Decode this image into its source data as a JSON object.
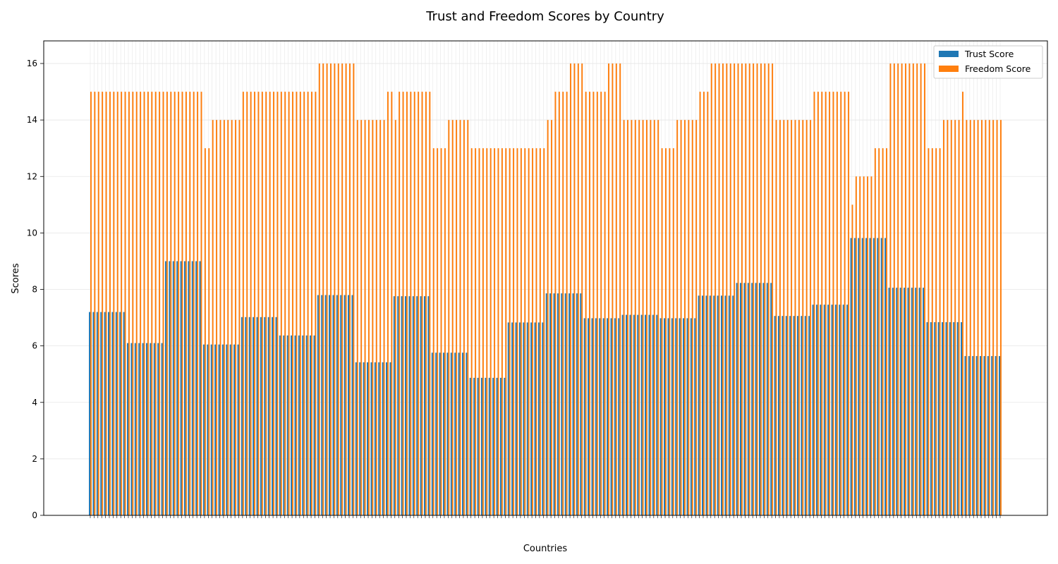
{
  "chart_data": {
    "type": "bar",
    "title": "Trust and Freedom Scores by Country",
    "xlabel": "Countries",
    "ylabel": "Scores",
    "ylim": [
      0,
      16.8
    ],
    "yticks": [
      0,
      2,
      4,
      6,
      8,
      10,
      12,
      14,
      16
    ],
    "grid": true,
    "legend_position": "top-right",
    "bars_per_group": 10,
    "series": [
      {
        "name": "Trust Score",
        "color": "#1f77b4",
        "group_values": [
          7.2,
          6.1,
          9.0,
          6.05,
          7.02,
          6.37,
          7.8,
          5.42,
          7.76,
          5.76,
          4.87,
          6.83,
          7.86,
          6.98,
          7.1,
          6.98,
          7.78,
          8.23,
          7.06,
          7.46,
          9.82,
          8.06,
          6.84,
          5.64
        ]
      },
      {
        "name": "Freedom Score",
        "color": "#ff7f0e",
        "values": [
          15,
          15,
          15,
          15,
          15,
          15,
          15,
          15,
          15,
          15,
          15,
          15,
          15,
          15,
          15,
          15,
          15,
          15,
          15,
          15,
          15,
          15,
          15,
          15,
          15,
          15,
          15,
          15,
          15,
          15,
          13,
          13,
          14,
          14,
          14,
          14,
          14,
          14,
          14,
          14,
          15,
          15,
          15,
          15,
          15,
          15,
          15,
          15,
          15,
          15,
          15,
          15,
          15,
          15,
          15,
          15,
          15,
          15,
          15,
          15,
          16,
          16,
          16,
          16,
          16,
          16,
          16,
          16,
          16,
          16,
          14,
          14,
          14,
          14,
          14,
          14,
          14,
          14,
          15,
          15,
          14,
          15,
          15,
          15,
          15,
          15,
          15,
          15,
          15,
          15,
          13,
          13,
          13,
          13,
          14,
          14,
          14,
          14,
          14,
          14,
          13,
          13,
          13,
          13,
          13,
          13,
          13,
          13,
          13,
          13,
          13,
          13,
          13,
          13,
          13,
          13,
          13,
          13,
          13,
          13,
          14,
          14,
          15,
          15,
          15,
          15,
          16,
          16,
          16,
          16,
          15,
          15,
          15,
          15,
          15,
          15,
          16,
          16,
          16,
          16,
          14,
          14,
          14,
          14,
          14,
          14,
          14,
          14,
          14,
          14,
          13,
          13,
          13,
          13,
          14,
          14,
          14,
          14,
          14,
          14,
          15,
          15,
          15,
          16,
          16,
          16,
          16,
          16,
          16,
          16,
          16,
          16,
          16,
          16,
          16,
          16,
          16,
          16,
          16,
          16,
          14,
          14,
          14,
          14,
          14,
          14,
          14,
          14,
          14,
          14,
          15,
          15,
          15,
          15,
          15,
          15,
          15,
          15,
          15,
          15,
          11,
          12,
          12,
          12,
          12,
          12,
          13,
          13,
          13,
          13,
          16,
          16,
          16,
          16,
          16,
          16,
          16,
          16,
          16,
          16,
          13,
          13,
          13,
          13,
          14,
          14,
          14,
          14,
          14,
          15,
          14,
          14,
          14,
          14,
          14,
          14,
          14,
          14,
          14,
          14
        ]
      }
    ]
  }
}
